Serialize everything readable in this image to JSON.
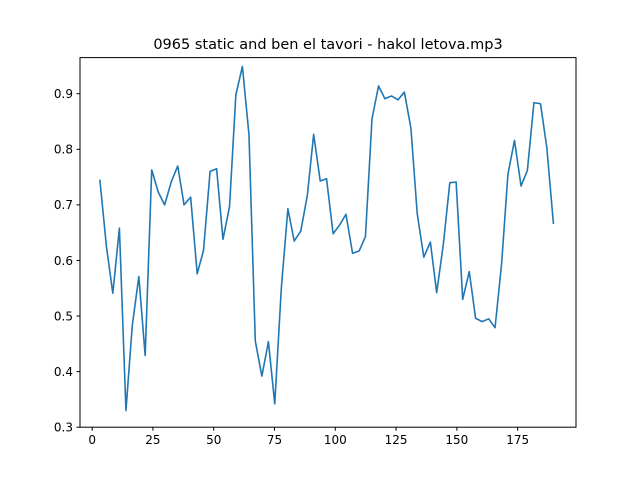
{
  "chart_data": {
    "type": "line",
    "title": "0965 static and ben el tavori - hakol letova.mp3",
    "xlabel": "",
    "ylabel": "",
    "xlim": [
      -5,
      199
    ],
    "ylim": [
      0.3,
      0.965
    ],
    "xticks": [
      0,
      25,
      50,
      75,
      100,
      125,
      150,
      175
    ],
    "yticks": [
      0.3,
      0.4,
      0.5,
      0.6,
      0.7,
      0.8,
      0.9
    ],
    "ytick_labels": [
      "0.3",
      "0.4",
      "0.5",
      "0.6",
      "0.7",
      "0.8",
      "0.9"
    ],
    "grid": false,
    "series": [
      {
        "color": "#1f77b4",
        "x": [
          3.2,
          5.9,
          8.5,
          11.2,
          13.9,
          16.5,
          19.2,
          21.8,
          24.5,
          27.2,
          29.8,
          32.5,
          35.2,
          37.8,
          40.5,
          43.2,
          45.8,
          48.5,
          51.2,
          53.8,
          56.5,
          59.1,
          61.8,
          64.5,
          67.1,
          69.8,
          72.5,
          75.1,
          77.8,
          80.5,
          83.1,
          85.8,
          88.5,
          91.1,
          93.8,
          96.4,
          99.1,
          101.8,
          104.4,
          107.1,
          109.8,
          112.4,
          115.1,
          117.8,
          120.4,
          123.1,
          125.8,
          128.4,
          131.1,
          133.7,
          136.4,
          139.1,
          141.7,
          144.4,
          147.1,
          149.7,
          152.4,
          155.1,
          157.7,
          160.4,
          163.1,
          165.7,
          168.4,
          171.0,
          173.7,
          176.4,
          179.0,
          181.7,
          184.4,
          187.0,
          189.7
        ],
        "y": [
          0.744,
          0.624,
          0.541,
          0.658,
          0.33,
          0.483,
          0.571,
          0.429,
          0.763,
          0.723,
          0.7,
          0.741,
          0.77,
          0.7,
          0.714,
          0.576,
          0.618,
          0.76,
          0.765,
          0.638,
          0.697,
          0.898,
          0.949,
          0.826,
          0.455,
          0.392,
          0.454,
          0.342,
          0.55,
          0.693,
          0.635,
          0.653,
          0.717,
          0.827,
          0.743,
          0.747,
          0.648,
          0.664,
          0.683,
          0.613,
          0.617,
          0.643,
          0.855,
          0.914,
          0.891,
          0.896,
          0.889,
          0.903,
          0.838,
          0.684,
          0.606,
          0.633,
          0.542,
          0.628,
          0.74,
          0.741,
          0.53,
          0.58,
          0.496,
          0.49,
          0.495,
          0.479,
          0.594,
          0.755,
          0.816,
          0.734,
          0.762,
          0.884,
          0.882,
          0.803,
          0.667
        ]
      }
    ]
  }
}
